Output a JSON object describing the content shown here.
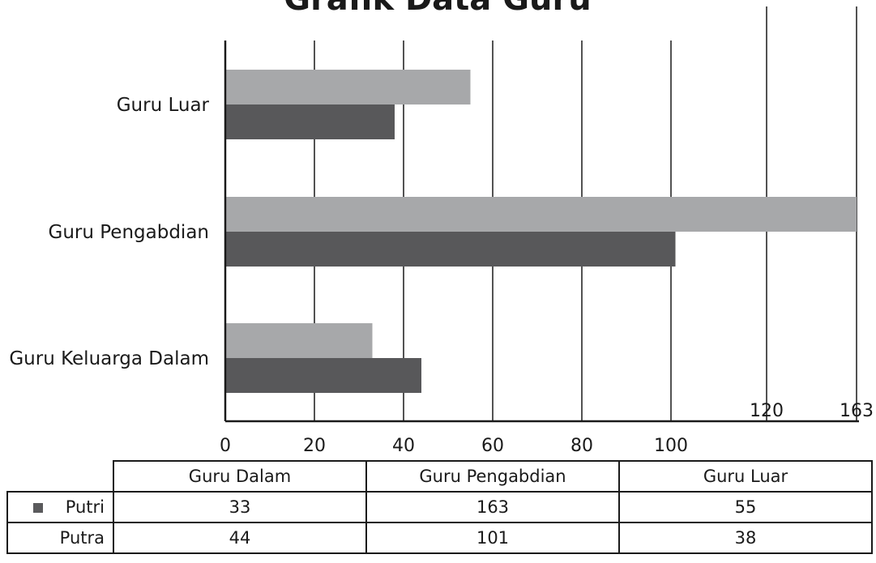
{
  "colors": {
    "putri": "#a7a8aa",
    "putra": "#58585a",
    "axis": "#1a1a1a"
  },
  "chart_data": {
    "type": "bar",
    "orientation": "horizontal",
    "title": "Grafik Data Guru",
    "categories": [
      "Guru Luar",
      "Guru Pengabdian",
      "Guru Keluarga Dalam"
    ],
    "series": [
      {
        "name": "Putri",
        "values": [
          55,
          163,
          33
        ]
      },
      {
        "name": "Putra",
        "values": [
          38,
          101,
          44
        ]
      }
    ],
    "x_ticks": [
      "0",
      "20",
      "40",
      "60",
      "80",
      "100"
    ],
    "x_ticks_upper": [
      "120",
      "163"
    ],
    "xlim": [
      0,
      163
    ],
    "grid": true
  },
  "table": {
    "headers": [
      "Guru  Dalam",
      "Guru Pengabdian",
      "Guru Luar"
    ],
    "rows": [
      {
        "label": "Putri",
        "values": [
          "33",
          "163",
          "55"
        ]
      },
      {
        "label": "Putra",
        "values": [
          "44",
          "101",
          "38"
        ]
      }
    ]
  }
}
